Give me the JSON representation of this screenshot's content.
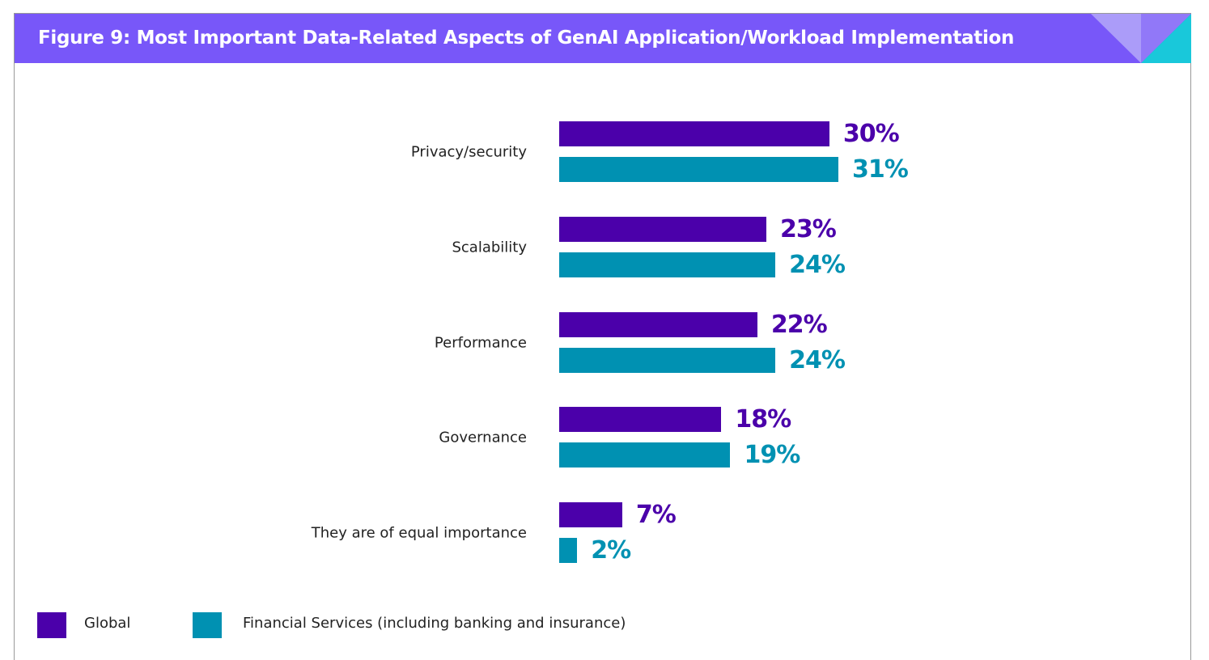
{
  "chart_data": {
    "type": "bar",
    "orientation": "horizontal",
    "title": "Figure 9: Most Important Data-Related Aspects of GenAI Application/Workload Implementation",
    "categories": [
      "Privacy/security",
      "Scalability",
      "Performance",
      "Governance",
      "They are of equal importance"
    ],
    "series": [
      {
        "name": "Global",
        "color": "#4b00aa",
        "values": [
          30,
          23,
          22,
          18,
          7
        ],
        "labels": [
          "30%",
          "23%",
          "22%",
          "18%",
          "7%"
        ]
      },
      {
        "name": "Financial Services (including banking and insurance)",
        "color": "#0091b2",
        "values": [
          31,
          24,
          24,
          19,
          2
        ],
        "labels": [
          "31%",
          "24%",
          "24%",
          "19%",
          "2%"
        ]
      }
    ],
    "xlabel": "",
    "ylabel": "",
    "xlim": [
      0,
      40
    ],
    "grid": false,
    "legend_position": "bottom-left"
  },
  "colors": {
    "header": "#7857f9",
    "corner_light": "#ab9cf9",
    "corner_mid": "#9178f8",
    "corner_cyan": "#19c8da"
  }
}
